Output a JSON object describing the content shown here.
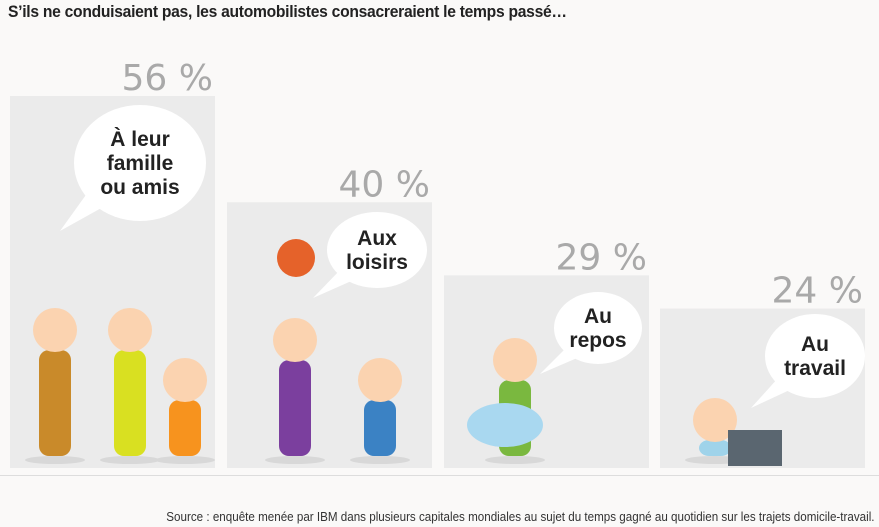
{
  "title": "S’ils ne conduisaient pas, les automobilistes consacreraient le temps passé…",
  "source": "Source : enquête menée par IBM dans plusieurs capitales mondiales au sujet du temps gagné au quotidien sur les trajets domicile-travail.",
  "chart_data": {
    "type": "bar",
    "title": "S’ils ne conduisaient pas, les automobilistes consacreraient le temps passé…",
    "categories": [
      [
        "À leur",
        "famille",
        "ou amis"
      ],
      [
        "Aux",
        "loisirs"
      ],
      [
        "Au",
        "repos"
      ],
      [
        "Au",
        "travail"
      ]
    ],
    "values": [
      56,
      40,
      29,
      24
    ],
    "value_labels": [
      "56 %",
      "40 %",
      "29 %",
      "24 %"
    ],
    "unit": "%",
    "ylim": [
      0,
      56
    ],
    "grid": false,
    "colors": {
      "bar": "#ebebeb",
      "label": "#a9a9a9",
      "bubble": "#ffffff"
    }
  }
}
